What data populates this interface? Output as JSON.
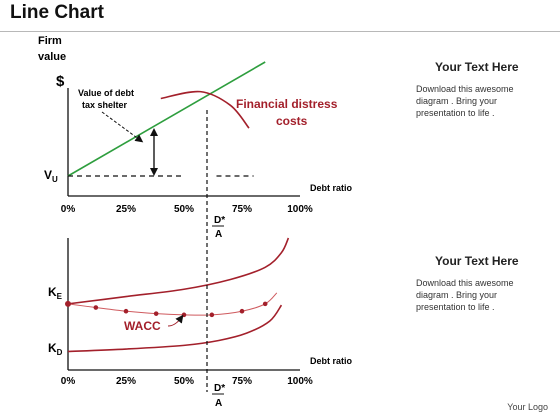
{
  "title": "Line Chart",
  "logo_text": "Your Logo",
  "panels": [
    {
      "title": "Your Text Here",
      "body": "Download this awesome diagram . Bring your presentation to life ."
    },
    {
      "title": "Your Text Here",
      "body": "Download this awesome diagram . Bring your presentation to life ."
    }
  ],
  "colors": {
    "green": "#2e9e3e",
    "red": "#a3202b",
    "dark": "#111111",
    "light_red": "#cf5a5e"
  },
  "chart_data": [
    {
      "type": "line",
      "ylabel": "Firm value",
      "ylabel_unit": "$",
      "xlabel": "Debt ratio",
      "x_ticks": [
        "0%",
        "25%",
        "50%",
        "75%",
        "100%"
      ],
      "xlim": [
        0,
        100
      ],
      "optimum_label": {
        "num": "D*",
        "den": "A",
        "x": 57
      },
      "vu_label": {
        "main": "V",
        "sub": "U"
      },
      "series": [
        {
          "name": "",
          "color": "#2e9e3e",
          "x": [
            0,
            85
          ],
          "y": [
            0.0,
            1.0
          ]
        },
        {
          "name": "",
          "color": "#a3202b",
          "x": [
            40,
            57,
            70,
            78
          ],
          "y": [
            0.68,
            0.74,
            0.62,
            0.42
          ]
        },
        {
          "name": "",
          "color": "#111111",
          "dash": true,
          "x": [
            0,
            80
          ],
          "y": [
            0.0,
            0.0
          ]
        }
      ],
      "annotations": [
        {
          "id": "tax-shelter",
          "text_lines": [
            "Value of debt",
            "tax shelter"
          ],
          "at_x": 35
        },
        {
          "id": "distress",
          "text_lines": [
            "Financial distress",
            "costs"
          ]
        }
      ]
    },
    {
      "type": "line",
      "xlabel": "Debt ratio",
      "x_ticks": [
        "0%",
        "25%",
        "50%",
        "75%",
        "100%"
      ],
      "xlim": [
        0,
        100
      ],
      "optimum_label": {
        "num": "D*",
        "den": "A",
        "x": 57
      },
      "y_labels": [
        {
          "main": "K",
          "sub": "E"
        },
        {
          "main": "K",
          "sub": "D"
        }
      ],
      "series": [
        {
          "name": "",
          "color": "#a3202b",
          "x": [
            0,
            25,
            50,
            70,
            85,
            92,
            95
          ],
          "y": [
            0.46,
            0.52,
            0.58,
            0.66,
            0.76,
            0.88,
            1.0
          ]
        },
        {
          "name": "WACC",
          "color": "#cf5a5e",
          "markers": true,
          "x": [
            0,
            12,
            25,
            38,
            50,
            62,
            75,
            85,
            90
          ],
          "y": [
            0.46,
            0.43,
            0.4,
            0.38,
            0.37,
            0.37,
            0.4,
            0.46,
            0.55
          ]
        },
        {
          "name": "",
          "color": "#a3202b",
          "x": [
            0,
            25,
            50,
            65,
            77,
            87,
            92
          ],
          "y": [
            0.07,
            0.09,
            0.12,
            0.16,
            0.22,
            0.32,
            0.45
          ]
        }
      ]
    }
  ]
}
